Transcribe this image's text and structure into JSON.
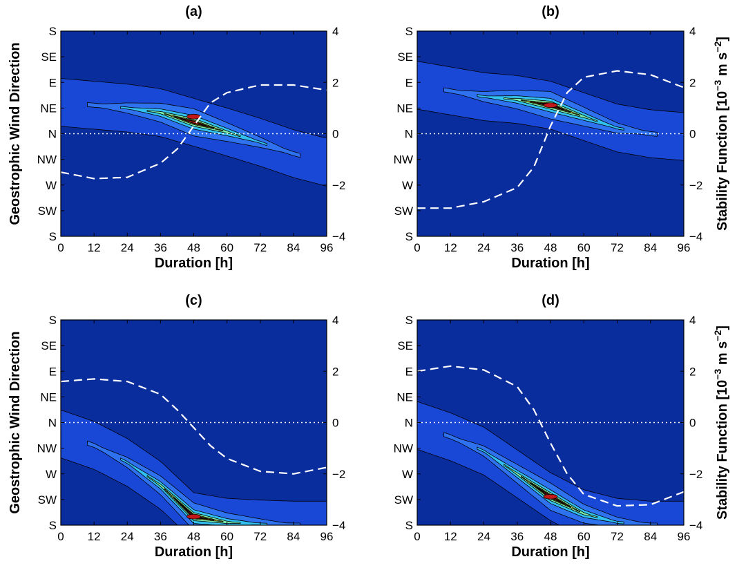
{
  "chart_data": {
    "type": "contour",
    "shared_axes": {
      "xlabel": "Duration [h]",
      "ylabel_left": "Geostrophic Wind Direction",
      "ylabel_right_main": "Stability Function [10",
      "ylabel_right_exp1": "−3",
      "ylabel_right_mid": " m s",
      "ylabel_right_exp2": "−2",
      "ylabel_right_end": "]",
      "x_ticks": [
        "0",
        "12",
        "24",
        "36",
        "48",
        "60",
        "72",
        "84",
        "96"
      ],
      "x_tick_values": [
        0,
        12,
        24,
        36,
        48,
        60,
        72,
        84,
        96
      ],
      "xlim": [
        0,
        96
      ],
      "y_ticks": [
        "S",
        "SE",
        "E",
        "NE",
        "N",
        "NW",
        "W",
        "SW",
        "S"
      ],
      "y_tick_values_deg": [
        180,
        135,
        90,
        45,
        0,
        -45,
        -90,
        -135,
        -180
      ],
      "ylim_deg": [
        -180,
        180
      ],
      "y2_ticks": [
        "4",
        "2",
        "0",
        "−2",
        "−4"
      ],
      "y2_tick_values": [
        4,
        2,
        0,
        -2,
        -4
      ],
      "y2lim": [
        -4,
        4
      ]
    },
    "colors": {
      "background": "#0a2d9e",
      "levels": [
        "#1a48d6",
        "#2f72f0",
        "#32c0f0",
        "#7cf0a8",
        "#f0e040",
        "#f08020",
        "#c01818"
      ],
      "stability_line": "#ffffff",
      "zero_line": "#ffffff"
    },
    "panels": [
      {
        "title": "(a)",
        "show_left_labels": true,
        "show_right_label": false,
        "stability_function": {
          "x": [
            0,
            12,
            24,
            36,
            42,
            48,
            54,
            60,
            72,
            84,
            96
          ],
          "y": [
            -1.5,
            -1.75,
            -1.7,
            -1.15,
            -0.6,
            0.3,
            1.2,
            1.6,
            1.9,
            1.9,
            1.7
          ]
        },
        "ridge": {
          "x": [
            0,
            12,
            24,
            36,
            48,
            60,
            72,
            84,
            96
          ],
          "y_deg": [
            55,
            50,
            45,
            37,
            20,
            3,
            -15,
            -35,
            -50
          ]
        },
        "peak": {
          "x": 48,
          "y_deg": 30
        }
      },
      {
        "title": "(b)",
        "show_left_labels": false,
        "show_right_label": true,
        "stability_function": {
          "x": [
            0,
            12,
            24,
            36,
            42,
            48,
            54,
            60,
            72,
            84,
            96
          ],
          "y": [
            -2.9,
            -2.9,
            -2.65,
            -2.1,
            -1.3,
            0.3,
            1.6,
            2.2,
            2.45,
            2.3,
            1.8
          ]
        },
        "ridge": {
          "x": [
            0,
            12,
            24,
            36,
            48,
            60,
            72,
            84,
            96
          ],
          "y_deg": [
            85,
            75,
            65,
            60,
            50,
            30,
            10,
            0,
            -5
          ]
        },
        "peak": {
          "x": 48,
          "y_deg": 50
        }
      },
      {
        "title": "(c)",
        "show_left_labels": true,
        "show_right_label": false,
        "stability_function": {
          "x": [
            0,
            12,
            24,
            36,
            42,
            48,
            54,
            60,
            72,
            84,
            96
          ],
          "y": [
            1.6,
            1.7,
            1.6,
            1.1,
            0.5,
            -0.2,
            -0.9,
            -1.4,
            -1.9,
            -2.0,
            -1.75
          ]
        },
        "ridge": {
          "x": [
            0,
            12,
            24,
            36,
            48,
            60,
            72,
            84,
            96
          ],
          "y_deg": [
            -20,
            -40,
            -70,
            -110,
            -165,
            -175,
            -178,
            -180,
            -180
          ]
        },
        "peak": {
          "x": 48,
          "y_deg": -165
        }
      },
      {
        "title": "(d)",
        "show_left_labels": false,
        "show_right_label": true,
        "stability_function": {
          "x": [
            0,
            12,
            24,
            36,
            42,
            48,
            54,
            60,
            72,
            84,
            96
          ],
          "y": [
            2.0,
            2.2,
            2.05,
            1.4,
            0.5,
            -0.8,
            -2.0,
            -2.8,
            -3.25,
            -3.2,
            -2.7
          ]
        },
        "ridge": {
          "x": [
            0,
            12,
            24,
            36,
            48,
            60,
            72,
            84,
            96
          ],
          "y_deg": [
            -5,
            -25,
            -50,
            -90,
            -130,
            -160,
            -175,
            -180,
            -180
          ]
        },
        "peak": {
          "x": 48,
          "y_deg": -130
        }
      }
    ]
  }
}
